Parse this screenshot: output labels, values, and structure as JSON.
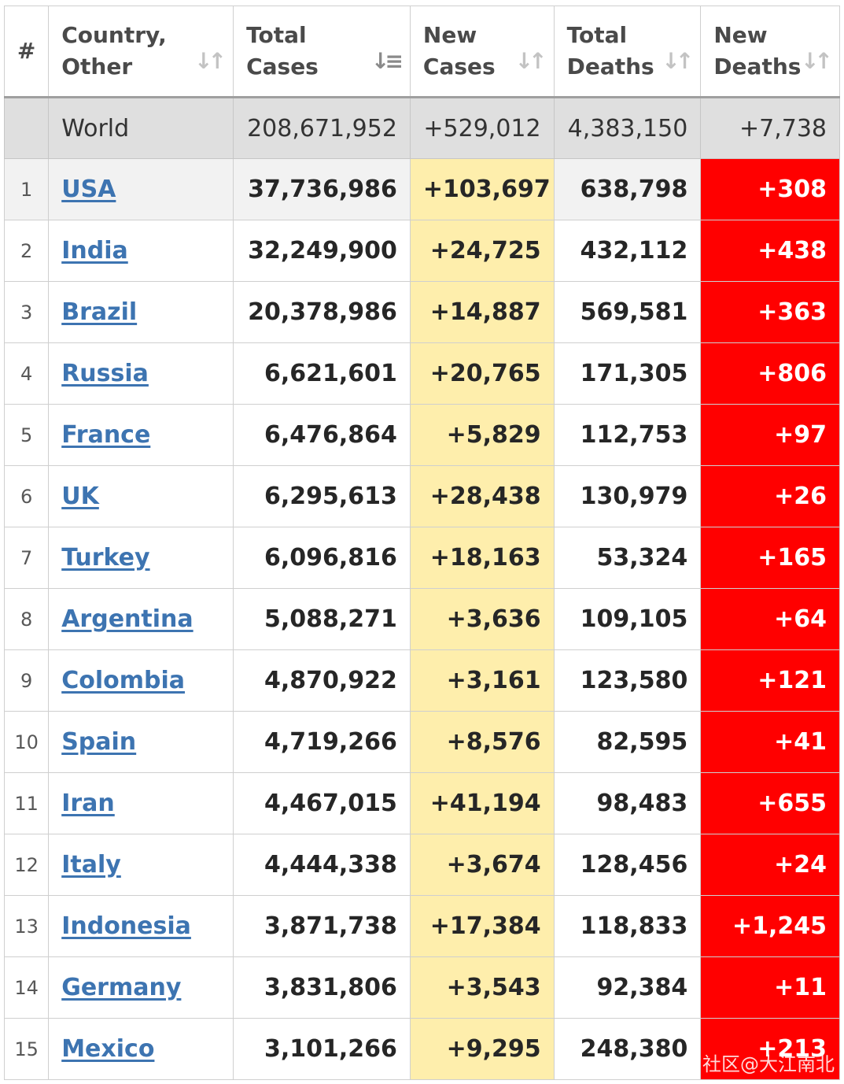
{
  "table": {
    "headers": [
      {
        "label": "#",
        "sortable": false
      },
      {
        "label": "Country, Other",
        "sortable": true,
        "sort_icon": "sort-updown-icon"
      },
      {
        "label": "Total Cases",
        "sortable": true,
        "sort_icon": "sort-descending-icon",
        "active": true
      },
      {
        "label": "New Cases",
        "sortable": true,
        "sort_icon": "sort-updown-icon"
      },
      {
        "label": "Total Deaths",
        "sortable": true,
        "sort_icon": "sort-updown-icon"
      },
      {
        "label": "New Deaths",
        "sortable": true,
        "sort_icon": "sort-updown-icon"
      }
    ],
    "world": {
      "rank": "",
      "country": "World",
      "total_cases": "208,671,952",
      "new_cases": "+529,012",
      "total_deaths": "4,383,150",
      "new_deaths": "+7,738"
    },
    "rows": [
      {
        "rank": "1",
        "country": "USA",
        "total_cases": "37,736,986",
        "new_cases": "+103,697",
        "total_deaths": "638,798",
        "new_deaths": "+308"
      },
      {
        "rank": "2",
        "country": "India",
        "total_cases": "32,249,900",
        "new_cases": "+24,725",
        "total_deaths": "432,112",
        "new_deaths": "+438"
      },
      {
        "rank": "3",
        "country": "Brazil",
        "total_cases": "20,378,986",
        "new_cases": "+14,887",
        "total_deaths": "569,581",
        "new_deaths": "+363"
      },
      {
        "rank": "4",
        "country": "Russia",
        "total_cases": "6,621,601",
        "new_cases": "+20,765",
        "total_deaths": "171,305",
        "new_deaths": "+806"
      },
      {
        "rank": "5",
        "country": "France",
        "total_cases": "6,476,864",
        "new_cases": "+5,829",
        "total_deaths": "112,753",
        "new_deaths": "+97"
      },
      {
        "rank": "6",
        "country": "UK",
        "total_cases": "6,295,613",
        "new_cases": "+28,438",
        "total_deaths": "130,979",
        "new_deaths": "+26"
      },
      {
        "rank": "7",
        "country": "Turkey",
        "total_cases": "6,096,816",
        "new_cases": "+18,163",
        "total_deaths": "53,324",
        "new_deaths": "+165"
      },
      {
        "rank": "8",
        "country": "Argentina",
        "total_cases": "5,088,271",
        "new_cases": "+3,636",
        "total_deaths": "109,105",
        "new_deaths": "+64"
      },
      {
        "rank": "9",
        "country": "Colombia",
        "total_cases": "4,870,922",
        "new_cases": "+3,161",
        "total_deaths": "123,580",
        "new_deaths": "+121"
      },
      {
        "rank": "10",
        "country": "Spain",
        "total_cases": "4,719,266",
        "new_cases": "+8,576",
        "total_deaths": "82,595",
        "new_deaths": "+41"
      },
      {
        "rank": "11",
        "country": "Iran",
        "total_cases": "4,467,015",
        "new_cases": "+41,194",
        "total_deaths": "98,483",
        "new_deaths": "+655"
      },
      {
        "rank": "12",
        "country": "Italy",
        "total_cases": "4,444,338",
        "new_cases": "+3,674",
        "total_deaths": "128,456",
        "new_deaths": "+24"
      },
      {
        "rank": "13",
        "country": "Indonesia",
        "total_cases": "3,871,738",
        "new_cases": "+17,384",
        "total_deaths": "118,833",
        "new_deaths": "+1,245"
      },
      {
        "rank": "14",
        "country": "Germany",
        "total_cases": "3,831,806",
        "new_cases": "+3,543",
        "total_deaths": "92,384",
        "new_deaths": "+11"
      },
      {
        "rank": "15",
        "country": "Mexico",
        "total_cases": "3,101,266",
        "new_cases": "+9,295",
        "total_deaths": "248,380",
        "new_deaths": "+213"
      }
    ]
  },
  "watermark": "社区@大江南北",
  "colors": {
    "new_cases_bg": "#feeeac",
    "new_deaths_bg": "#ff0000",
    "world_row_bg": "#dfdfdf",
    "country_link": "#3d74b1"
  }
}
